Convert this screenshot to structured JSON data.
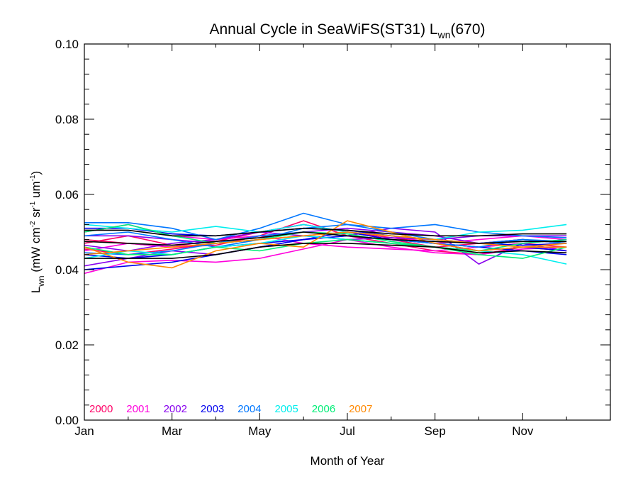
{
  "chart_data": {
    "type": "line",
    "title": {
      "main": "Annual Cycle in SeaWiFS(ST31) L",
      "sub": "wn",
      "end": "(670)"
    },
    "xlabel": "Month of Year",
    "ylabel": {
      "pre": "L",
      "sub": "wn",
      "units": [
        {
          "t": " (mW cm",
          "s": null
        },
        {
          "t": "-2",
          "s": "sup"
        },
        {
          "t": " sr",
          "s": null
        },
        {
          "t": "-1",
          "s": "sup"
        },
        {
          "t": " um",
          "s": null
        },
        {
          "t": "-1",
          "s": "sup"
        },
        {
          "t": ")",
          "s": null
        }
      ]
    },
    "xlim": [
      1,
      13
    ],
    "ylim": [
      0,
      0.1
    ],
    "x_ticks": [
      {
        "x": 1,
        "label": "Jan"
      },
      {
        "x": 3,
        "label": "Mar"
      },
      {
        "x": 5,
        "label": "May"
      },
      {
        "x": 7,
        "label": "Jul"
      },
      {
        "x": 9,
        "label": "Sep"
      },
      {
        "x": 11,
        "label": "Nov"
      }
    ],
    "y_ticks": [
      {
        "y": 0.0,
        "label": "0.00"
      },
      {
        "y": 0.02,
        "label": "0.02"
      },
      {
        "y": 0.04,
        "label": "0.04"
      },
      {
        "y": 0.06,
        "label": "0.06"
      },
      {
        "y": 0.08,
        "label": "0.08"
      },
      {
        "y": 0.1,
        "label": "0.10"
      }
    ],
    "x": [
      1,
      2,
      3,
      4,
      5,
      6,
      7,
      8,
      9,
      10,
      11,
      12
    ],
    "legend": [
      {
        "name": "2000",
        "color": "#ff0066"
      },
      {
        "name": "2001",
        "color": "#ff00dd"
      },
      {
        "name": "2002",
        "color": "#8800ee"
      },
      {
        "name": "2003",
        "color": "#0000ee"
      },
      {
        "name": "2004",
        "color": "#0077ff"
      },
      {
        "name": "2005",
        "color": "#00eeee"
      },
      {
        "name": "2006",
        "color": "#00ee77"
      },
      {
        "name": "2007",
        "color": "#ff8800"
      }
    ],
    "series": [
      {
        "color": "#ff0066",
        "values": [
          0.047,
          0.049,
          0.0465,
          0.0475,
          0.05,
          0.052,
          0.05,
          0.048,
          0.046,
          0.047,
          0.048,
          0.047
        ]
      },
      {
        "color": "#ff0066",
        "values": [
          0.0455,
          0.044,
          0.0455,
          0.047,
          0.048,
          0.049,
          0.05,
          0.0485,
          0.047,
          0.046,
          0.047,
          0.046
        ]
      },
      {
        "color": "#ff0066",
        "values": [
          0.048,
          0.047,
          0.046,
          0.0465,
          0.049,
          0.053,
          0.049,
          0.047,
          0.045,
          0.044,
          0.046,
          0.045
        ]
      },
      {
        "color": "#ff00dd",
        "values": [
          0.039,
          0.042,
          0.0425,
          0.042,
          0.043,
          0.0455,
          0.048,
          0.046,
          0.0445,
          0.044,
          0.0455,
          0.046
        ]
      },
      {
        "color": "#ff00dd",
        "values": [
          0.045,
          0.047,
          0.046,
          0.048,
          0.049,
          0.047,
          0.046,
          0.0455,
          0.045,
          0.046,
          0.047,
          0.048
        ]
      },
      {
        "color": "#ff00dd",
        "values": [
          0.05,
          0.052,
          0.049,
          0.048,
          0.05,
          0.052,
          0.05,
          0.049,
          0.047,
          0.048,
          0.049,
          0.048
        ]
      },
      {
        "color": "#8800ee",
        "values": [
          0.041,
          0.043,
          0.045,
          0.044,
          0.046,
          0.048,
          0.049,
          0.051,
          0.05,
          0.0415,
          0.047,
          0.045
        ]
      },
      {
        "color": "#8800ee",
        "values": [
          0.049,
          0.049,
          0.048,
          0.047,
          0.049,
          0.05,
          0.051,
          0.05,
          0.049,
          0.047,
          0.048,
          0.047
        ]
      },
      {
        "color": "#8800ee",
        "values": [
          0.0465,
          0.045,
          0.047,
          0.048,
          0.05,
          0.049,
          0.048,
          0.0485,
          0.048,
          0.049,
          0.049,
          0.049
        ]
      },
      {
        "color": "#0000ee",
        "values": [
          0.044,
          0.043,
          0.044,
          0.046,
          0.047,
          0.048,
          0.05,
          0.048,
          0.047,
          0.045,
          0.046,
          0.045
        ]
      },
      {
        "color": "#0000ee",
        "values": [
          0.051,
          0.051,
          0.0495,
          0.049,
          0.05,
          0.051,
          0.0505,
          0.049,
          0.048,
          0.047,
          0.0465,
          0.047
        ]
      },
      {
        "color": "#0000ee",
        "values": [
          0.04,
          0.041,
          0.042,
          0.044,
          0.046,
          0.048,
          0.049,
          0.048,
          0.047,
          0.046,
          0.045,
          0.044
        ]
      },
      {
        "color": "#0077ff",
        "values": [
          0.0525,
          0.0525,
          0.051,
          0.048,
          0.051,
          0.055,
          0.052,
          0.051,
          0.052,
          0.05,
          0.049,
          0.0485
        ]
      },
      {
        "color": "#0077ff",
        "values": [
          0.0445,
          0.044,
          0.045,
          0.047,
          0.049,
          0.05,
          0.049,
          0.048,
          0.047,
          0.046,
          0.048,
          0.047
        ]
      },
      {
        "color": "#0077ff",
        "values": [
          0.049,
          0.05,
          0.048,
          0.046,
          0.048,
          0.051,
          0.052,
          0.05,
          0.048,
          0.047,
          0.048,
          0.0475
        ]
      },
      {
        "color": "#00eeee",
        "values": [
          0.052,
          0.051,
          0.05,
          0.0515,
          0.05,
          0.052,
          0.05,
          0.049,
          0.048,
          0.05,
          0.0505,
          0.052
        ]
      },
      {
        "color": "#00eeee",
        "values": [
          0.043,
          0.045,
          0.044,
          0.046,
          0.047,
          0.049,
          0.048,
          0.047,
          0.046,
          0.045,
          0.044,
          0.0415
        ]
      },
      {
        "color": "#00ee77",
        "values": [
          0.05,
          0.052,
          0.049,
          0.047,
          0.048,
          0.05,
          0.0495,
          0.0475,
          0.046,
          0.044,
          0.043,
          0.046
        ]
      },
      {
        "color": "#00ee77",
        "values": [
          0.046,
          0.044,
          0.044,
          0.046,
          0.045,
          0.047,
          0.048,
          0.047,
          0.046,
          0.045,
          0.047,
          0.048
        ]
      },
      {
        "color": "#ff8800",
        "values": [
          0.046,
          0.042,
          0.0405,
          0.045,
          0.047,
          0.046,
          0.053,
          0.05,
          0.047,
          0.045,
          0.046,
          0.046
        ]
      },
      {
        "color": "#ff8800",
        "values": [
          0.044,
          0.045,
          0.046,
          0.047,
          0.048,
          0.049,
          0.05,
          0.049,
          0.048,
          0.047,
          0.046,
          0.047
        ]
      },
      {
        "color": "#000000",
        "values": [
          0.043,
          0.043,
          0.043,
          0.044,
          0.046,
          0.047,
          0.047,
          0.0465,
          0.046,
          0.0445,
          0.045,
          0.0445
        ]
      },
      {
        "color": "#000000",
        "values": [
          0.0475,
          0.047,
          0.0465,
          0.0475,
          0.0485,
          0.05,
          0.049,
          0.048,
          0.0475,
          0.047,
          0.0475,
          0.0475
        ]
      },
      {
        "color": "#000000",
        "values": [
          0.0505,
          0.0505,
          0.049,
          0.049,
          0.05,
          0.051,
          0.0505,
          0.0495,
          0.049,
          0.049,
          0.0495,
          0.0495
        ]
      }
    ]
  }
}
